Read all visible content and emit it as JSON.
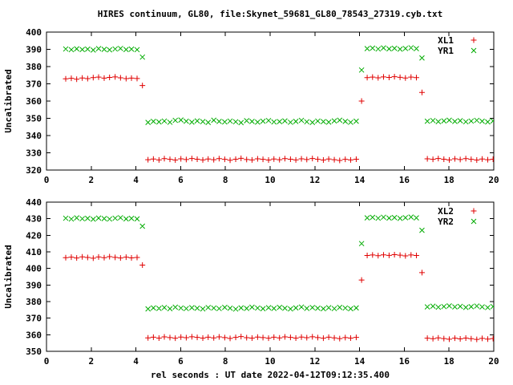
{
  "title": "HIRES continuum, GL80, file:Skynet_59681_GL80_78543_27319.cyb.txt",
  "chart_data": [
    {
      "type": "scatter",
      "panel": "top",
      "title": "",
      "xlabel": "",
      "ylabel": "Uncalibrated",
      "xlim": [
        0,
        20
      ],
      "ylim": [
        320,
        400
      ],
      "xticks": [
        0,
        2,
        4,
        6,
        8,
        10,
        12,
        14,
        16,
        18,
        20
      ],
      "yticks": [
        320,
        330,
        340,
        350,
        360,
        370,
        380,
        390,
        400
      ],
      "grid": false,
      "legend_position": "top-right-inside",
      "x": [
        0.86,
        1.11,
        1.35,
        1.6,
        1.84,
        2.09,
        2.33,
        2.58,
        2.82,
        3.07,
        3.31,
        3.56,
        3.8,
        4.05,
        4.29,
        4.54,
        4.78,
        5.03,
        5.27,
        5.52,
        5.76,
        6.01,
        6.25,
        6.5,
        6.74,
        6.99,
        7.23,
        7.48,
        7.72,
        7.97,
        8.21,
        8.46,
        8.7,
        8.95,
        9.19,
        9.44,
        9.68,
        9.93,
        10.17,
        10.42,
        10.66,
        10.91,
        11.15,
        11.4,
        11.64,
        11.89,
        12.13,
        12.38,
        12.62,
        12.87,
        13.11,
        13.36,
        13.6,
        13.85,
        14.09,
        14.34,
        14.58,
        14.83,
        15.07,
        15.32,
        15.56,
        15.81,
        16.05,
        16.3,
        16.54,
        16.79,
        17.03,
        17.28,
        17.52,
        17.77,
        18.01,
        18.26,
        18.5,
        18.75,
        18.99,
        19.24,
        19.48,
        19.73,
        19.97
      ],
      "series": [
        {
          "name": "XL1",
          "marker": "plus",
          "color": "#e00000",
          "y": [
            372.9,
            373.2,
            372.7,
            373.4,
            373.0,
            373.6,
            373.9,
            373.3,
            373.7,
            374.0,
            373.5,
            373.0,
            373.3,
            373.1,
            369.0,
            326.0,
            326.4,
            325.9,
            326.6,
            326.2,
            325.8,
            326.5,
            326.1,
            326.7,
            326.3,
            325.9,
            326.4,
            326.0,
            326.6,
            326.2,
            325.7,
            326.3,
            326.8,
            326.1,
            325.9,
            326.5,
            326.2,
            325.8,
            326.4,
            326.0,
            326.6,
            326.3,
            325.9,
            326.5,
            326.1,
            326.7,
            326.2,
            325.8,
            326.4,
            326.0,
            325.6,
            326.2,
            325.9,
            326.3,
            360.0,
            373.6,
            373.9,
            373.5,
            374.0,
            373.7,
            374.1,
            373.8,
            373.4,
            373.9,
            373.6,
            365.0,
            326.5,
            326.2,
            326.7,
            326.3,
            325.9,
            326.5,
            326.1,
            326.6,
            326.2,
            325.8,
            326.4,
            326.0,
            326.3
          ]
        },
        {
          "name": "YR1",
          "marker": "cross",
          "color": "#00ab00",
          "y": [
            390.2,
            389.8,
            390.3,
            389.9,
            390.1,
            389.6,
            390.4,
            390.0,
            389.7,
            390.2,
            390.5,
            389.9,
            390.1,
            389.8,
            385.5,
            347.6,
            348.2,
            347.9,
            348.4,
            347.7,
            348.8,
            349.0,
            348.3,
            347.8,
            348.5,
            348.1,
            347.6,
            348.9,
            348.2,
            347.9,
            348.4,
            348.0,
            347.5,
            348.6,
            348.2,
            347.8,
            348.3,
            348.7,
            347.9,
            348.1,
            348.5,
            347.7,
            348.2,
            348.8,
            348.0,
            347.6,
            348.4,
            348.1,
            347.8,
            348.5,
            348.9,
            348.2,
            347.7,
            348.3,
            378.0,
            390.4,
            390.7,
            390.2,
            390.8,
            390.3,
            390.6,
            390.1,
            390.5,
            390.9,
            390.4,
            385.0,
            348.3,
            348.7,
            348.1,
            348.5,
            348.9,
            348.2,
            348.6,
            348.0,
            348.4,
            348.8,
            348.3,
            347.9,
            348.5
          ]
        }
      ]
    },
    {
      "type": "scatter",
      "panel": "bottom",
      "title": "",
      "xlabel": "rel seconds : UT date 2022-04-12T09:12:35.400",
      "ylabel": "Uncalibrated",
      "xlim": [
        0,
        20
      ],
      "ylim": [
        350,
        440
      ],
      "xticks": [
        0,
        2,
        4,
        6,
        8,
        10,
        12,
        14,
        16,
        18,
        20
      ],
      "yticks": [
        350,
        360,
        370,
        380,
        390,
        400,
        410,
        420,
        430,
        440
      ],
      "grid": false,
      "legend_position": "top-right-inside",
      "x": [
        0.86,
        1.11,
        1.35,
        1.6,
        1.84,
        2.09,
        2.33,
        2.58,
        2.82,
        3.07,
        3.31,
        3.56,
        3.8,
        4.05,
        4.29,
        4.54,
        4.78,
        5.03,
        5.27,
        5.52,
        5.76,
        6.01,
        6.25,
        6.5,
        6.74,
        6.99,
        7.23,
        7.48,
        7.72,
        7.97,
        8.21,
        8.46,
        8.7,
        8.95,
        9.19,
        9.44,
        9.68,
        9.93,
        10.17,
        10.42,
        10.66,
        10.91,
        11.15,
        11.4,
        11.64,
        11.89,
        12.13,
        12.38,
        12.62,
        12.87,
        13.11,
        13.36,
        13.6,
        13.85,
        14.09,
        14.34,
        14.58,
        14.83,
        15.07,
        15.32,
        15.56,
        15.81,
        16.05,
        16.3,
        16.54,
        16.79,
        17.03,
        17.28,
        17.52,
        17.77,
        18.01,
        18.26,
        18.5,
        18.75,
        18.99,
        19.24,
        19.48,
        19.73,
        19.97
      ],
      "series": [
        {
          "name": "XL2",
          "marker": "plus",
          "color": "#e00000",
          "y": [
            406.5,
            406.8,
            406.3,
            407.0,
            406.6,
            406.2,
            406.9,
            406.5,
            407.1,
            406.7,
            406.3,
            406.8,
            406.4,
            406.6,
            402.0,
            358.1,
            358.5,
            358.0,
            358.7,
            358.3,
            357.9,
            358.6,
            358.2,
            358.8,
            358.4,
            358.0,
            358.5,
            358.1,
            358.7,
            358.3,
            357.8,
            358.4,
            358.9,
            358.2,
            358.0,
            358.6,
            358.3,
            357.9,
            358.5,
            358.1,
            358.7,
            358.4,
            358.0,
            358.6,
            358.2,
            358.8,
            358.3,
            357.9,
            358.5,
            358.1,
            357.7,
            358.3,
            358.0,
            358.4,
            393.0,
            407.8,
            408.1,
            407.7,
            408.2,
            407.9,
            408.3,
            408.0,
            407.6,
            408.1,
            407.8,
            397.5,
            357.9,
            357.6,
            358.1,
            357.7,
            357.3,
            357.9,
            357.5,
            358.0,
            357.6,
            357.2,
            357.8,
            357.4,
            357.7
          ]
        },
        {
          "name": "YR2",
          "marker": "cross",
          "color": "#00ab00",
          "y": [
            430.3,
            429.8,
            430.5,
            430.0,
            430.2,
            429.7,
            430.4,
            430.1,
            429.8,
            430.3,
            430.6,
            429.9,
            430.2,
            429.9,
            425.5,
            375.6,
            376.2,
            375.9,
            376.4,
            375.7,
            376.6,
            376.1,
            375.8,
            376.3,
            376.0,
            375.6,
            376.4,
            376.1,
            375.8,
            376.5,
            376.0,
            375.5,
            376.2,
            375.9,
            376.6,
            376.1,
            375.7,
            376.3,
            375.9,
            376.5,
            376.0,
            375.6,
            376.2,
            376.7,
            375.9,
            376.4,
            376.0,
            375.7,
            376.3,
            375.8,
            376.5,
            376.1,
            375.7,
            376.2,
            415.0,
            430.5,
            430.8,
            430.3,
            430.9,
            430.4,
            430.7,
            430.2,
            430.6,
            431.0,
            430.5,
            423.0,
            376.8,
            377.2,
            376.6,
            377.0,
            377.4,
            376.8,
            377.1,
            376.5,
            376.9,
            377.3,
            376.8,
            376.4,
            377.0
          ]
        }
      ]
    }
  ]
}
